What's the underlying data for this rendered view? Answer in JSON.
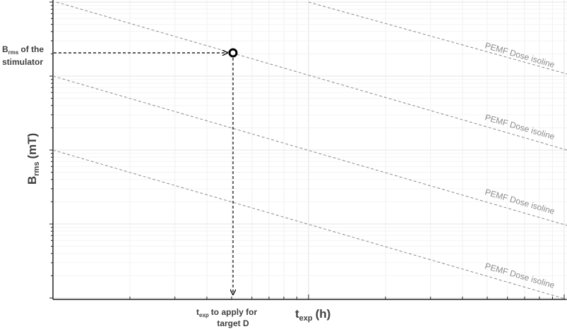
{
  "annotations": {
    "stimulator": {
      "main": "B",
      "sub": "rms",
      "rest": "of the",
      "line2": "stimulator"
    },
    "target": {
      "main": "t",
      "sub": "exp",
      "rest": "to apply for",
      "line2": "target D"
    }
  },
  "axes": {
    "y": {
      "main": "B",
      "sub": "rms",
      "unit": "(mT)"
    },
    "x": {
      "main": "t",
      "sub": "exp",
      "unit": "(h)"
    }
  },
  "isolines": [
    {
      "label": "PEMF Dose isoline"
    },
    {
      "label": "PEMF Dose isoline"
    },
    {
      "label": "PEMF Dose isoline"
    },
    {
      "label": "PEMF Dose isoline"
    }
  ]
}
